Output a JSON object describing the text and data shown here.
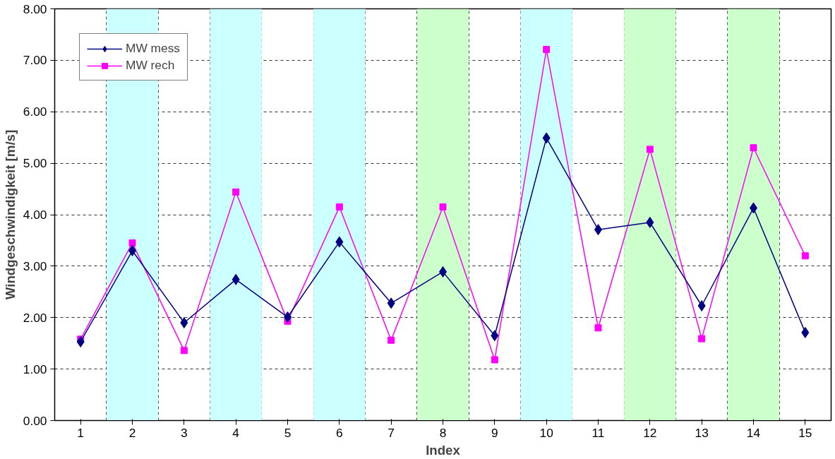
{
  "chart_data": {
    "type": "line",
    "xlabel": "Index",
    "ylabel": "Windgeschwindigkeit [m/s]",
    "x": [
      1,
      2,
      3,
      4,
      5,
      6,
      7,
      8,
      9,
      10,
      11,
      12,
      13,
      14,
      15
    ],
    "xlim": [
      0.5,
      15.5
    ],
    "xticks": [
      1,
      2,
      3,
      4,
      5,
      6,
      7,
      8,
      9,
      10,
      11,
      12,
      13,
      14,
      15
    ],
    "ylim": [
      0,
      8
    ],
    "yticks": [
      {
        "value": 0,
        "label": "0.00"
      },
      {
        "value": 1,
        "label": "1.00"
      },
      {
        "value": 2,
        "label": "2.00"
      },
      {
        "value": 3,
        "label": "3.00"
      },
      {
        "value": 4,
        "label": "4.00"
      },
      {
        "value": 5,
        "label": "5.00"
      },
      {
        "value": 6,
        "label": "6.00"
      },
      {
        "value": 7,
        "label": "7.00"
      },
      {
        "value": 8,
        "label": "8.00"
      }
    ],
    "grid": true,
    "legend": "top left",
    "line_style": "solid",
    "series": [
      {
        "name": "MW mess",
        "color": "#000080",
        "marker": "diamond",
        "values": [
          1.53,
          3.3,
          1.9,
          2.74,
          2.01,
          3.47,
          2.28,
          2.89,
          1.65,
          5.49,
          3.71,
          3.85,
          2.23,
          4.13,
          1.71
        ]
      },
      {
        "name": "MW rech",
        "color": "#ff00ff",
        "marker": "square",
        "values": [
          1.58,
          3.45,
          1.36,
          4.44,
          1.93,
          4.15,
          1.56,
          4.15,
          1.18,
          7.21,
          1.8,
          5.27,
          1.59,
          5.3,
          3.2
        ]
      }
    ],
    "bands": [
      {
        "axis": "x",
        "from": 1.5,
        "to": 2.5,
        "color": "#ccffff"
      },
      {
        "axis": "x",
        "from": 3.5,
        "to": 4.5,
        "color": "#ccffff"
      },
      {
        "axis": "x",
        "from": 5.5,
        "to": 6.5,
        "color": "#ccffff"
      },
      {
        "axis": "x",
        "from": 7.5,
        "to": 8.5,
        "color": "#ccffcc"
      },
      {
        "axis": "x",
        "from": 9.5,
        "to": 10.5,
        "color": "#ccffff"
      },
      {
        "axis": "x",
        "from": 11.5,
        "to": 12.5,
        "color": "#ccffcc"
      },
      {
        "axis": "x",
        "from": 13.5,
        "to": 14.5,
        "color": "#ccffcc"
      }
    ]
  }
}
